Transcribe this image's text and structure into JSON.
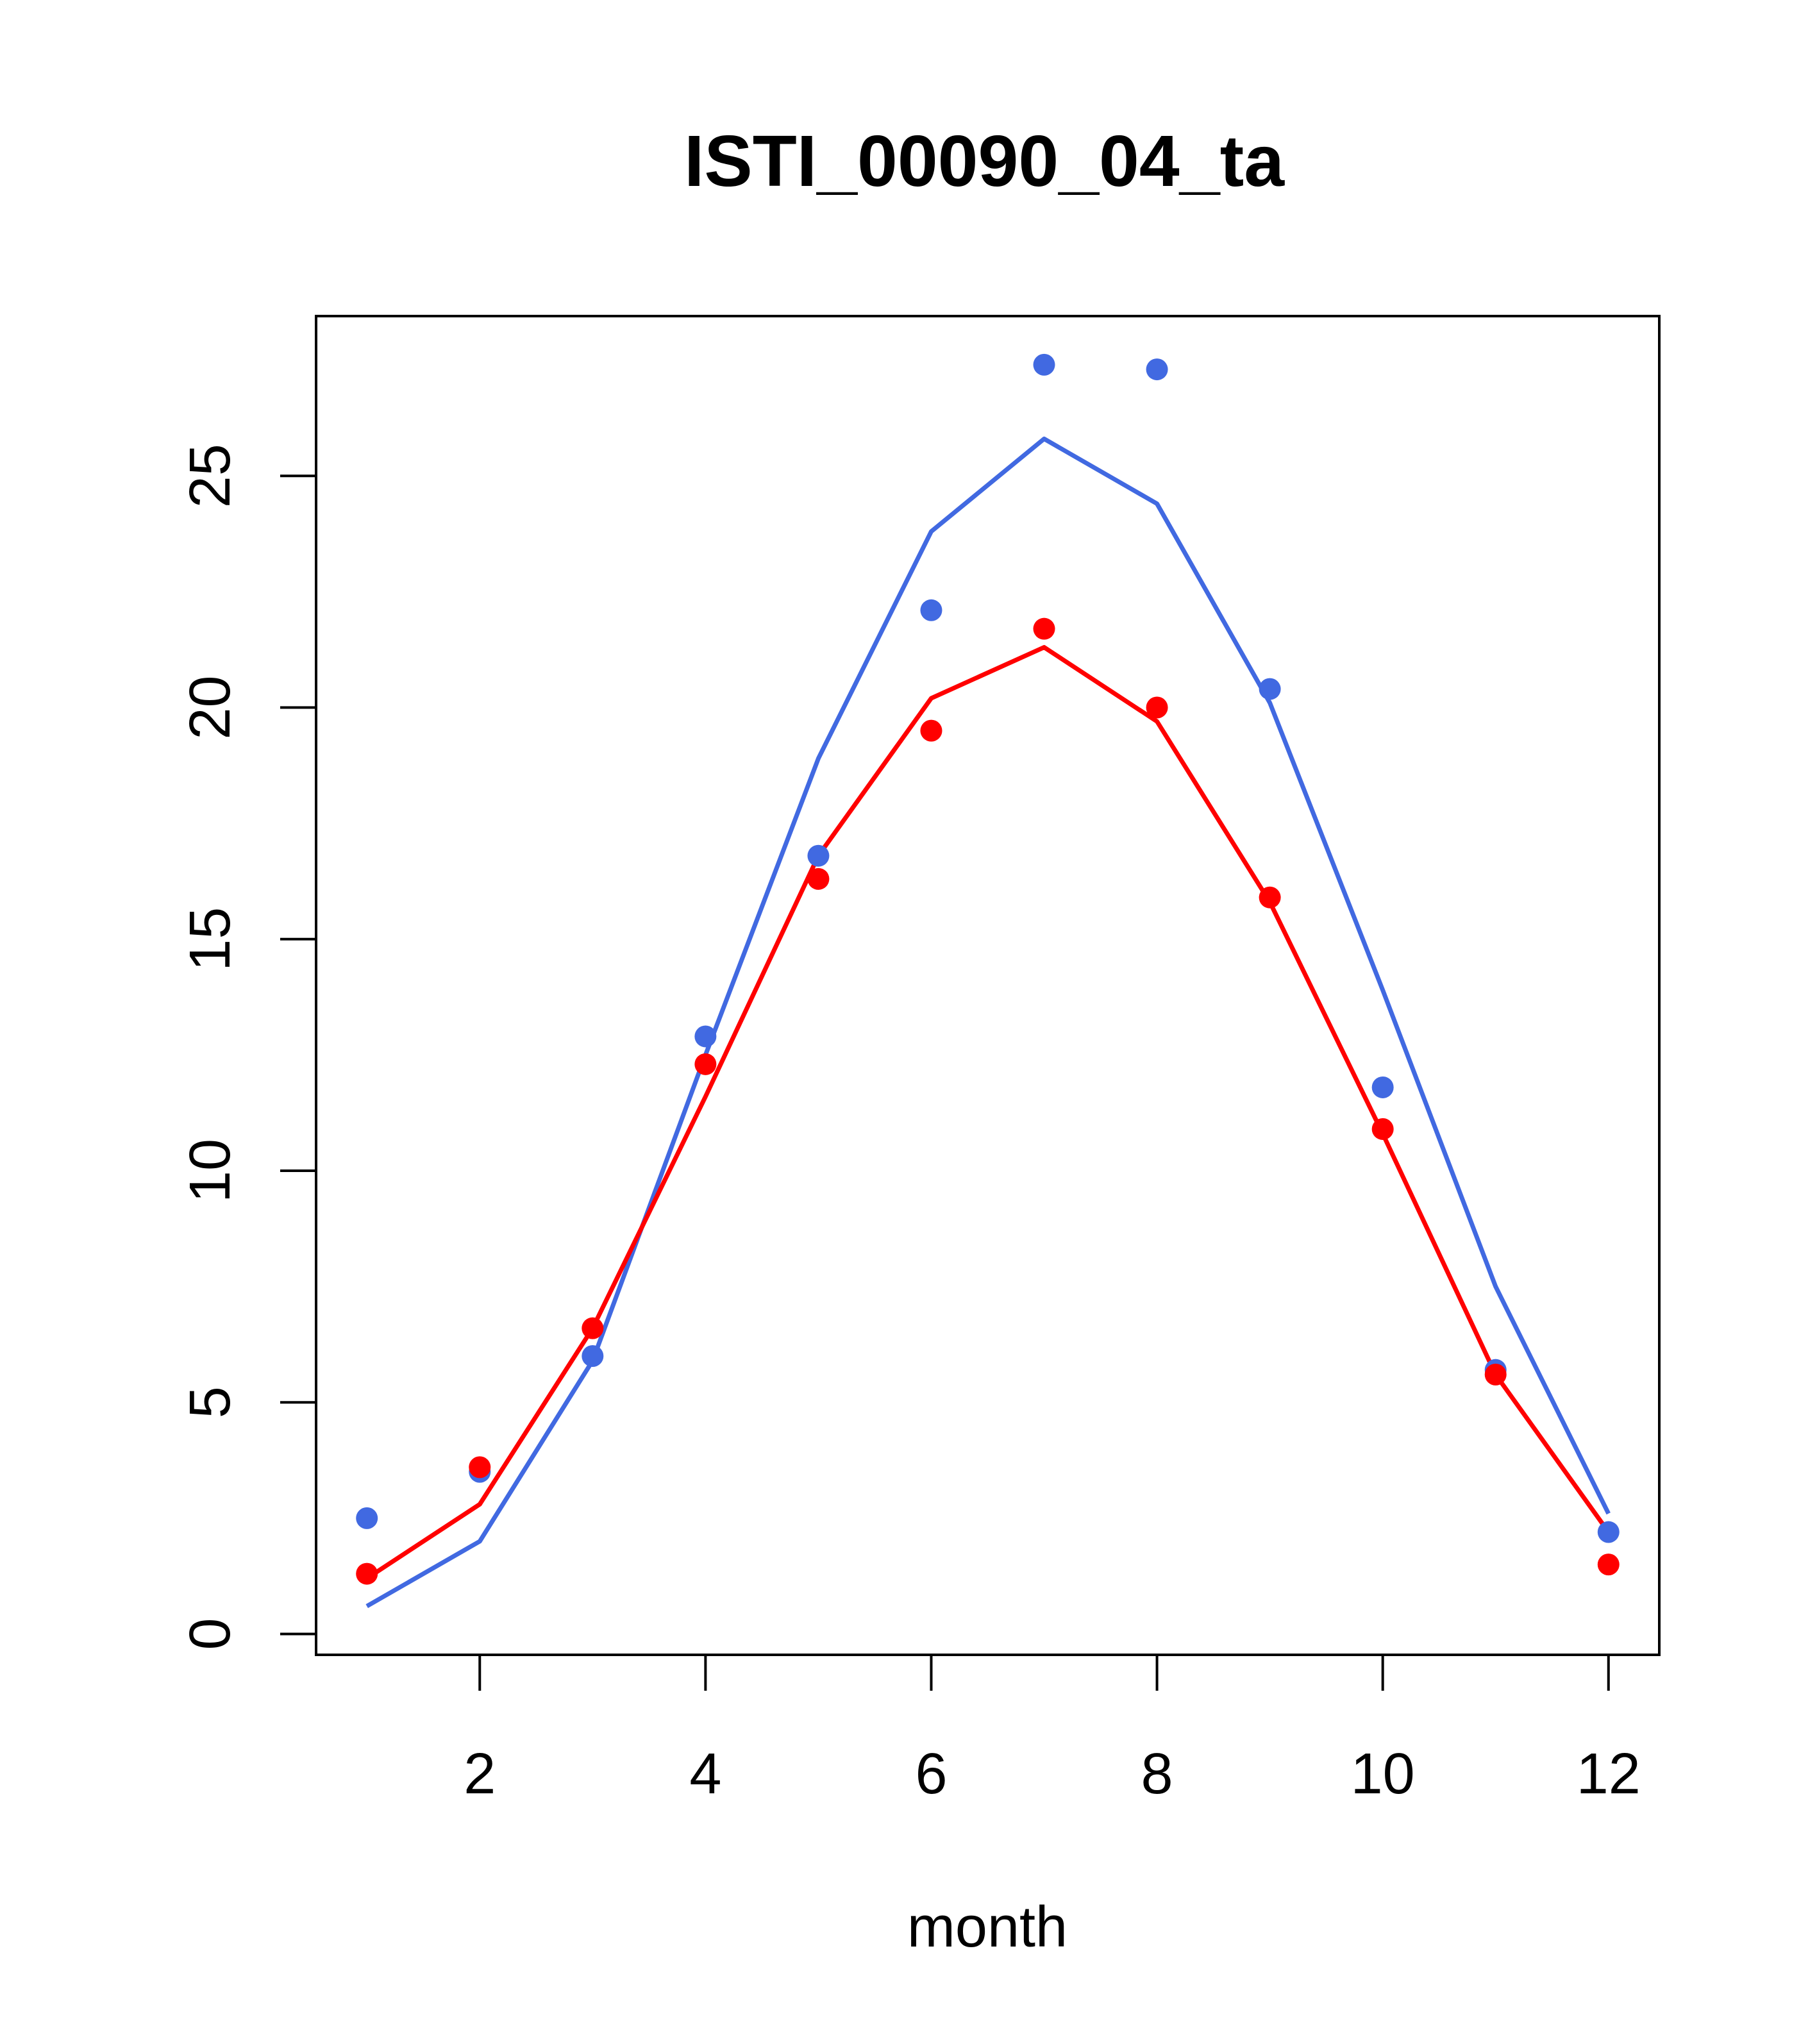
{
  "chart_data": {
    "type": "line",
    "title": "ISTI_00090_04_ta",
    "xlabel": "month",
    "ylabel": "",
    "xlim": [
      0.55,
      12.45
    ],
    "ylim": [
      -0.45,
      28.45
    ],
    "x_ticks": [
      2,
      4,
      6,
      8,
      10,
      12
    ],
    "x_tick_labels": [
      "2",
      "4",
      "6",
      "8",
      "10",
      "12"
    ],
    "y_ticks": [
      0,
      5,
      10,
      15,
      20,
      25
    ],
    "y_tick_labels": [
      "0",
      "5",
      "10",
      "15",
      "20",
      "25"
    ],
    "x": [
      1,
      2,
      3,
      4,
      5,
      6,
      7,
      8,
      9,
      10,
      11,
      12
    ],
    "series": [
      {
        "color": "#4169E1",
        "points": [
          2.5,
          3.5,
          6.0,
          12.9,
          16.8,
          22.1,
          27.4,
          27.3,
          20.4,
          11.8,
          5.7,
          2.2
        ],
        "line": [
          0.6,
          2.0,
          5.9,
          12.5,
          18.9,
          23.8,
          25.8,
          24.4,
          20.1,
          13.9,
          7.5,
          2.6
        ]
      },
      {
        "color": "#FF0000",
        "points": [
          1.3,
          3.6,
          6.6,
          12.3,
          16.3,
          19.5,
          21.7,
          20.0,
          15.9,
          10.9,
          5.6,
          1.5
        ],
        "line": [
          1.2,
          2.8,
          6.6,
          11.6,
          16.8,
          20.2,
          21.3,
          19.7,
          15.8,
          10.8,
          5.6,
          2.2
        ]
      }
    ]
  }
}
